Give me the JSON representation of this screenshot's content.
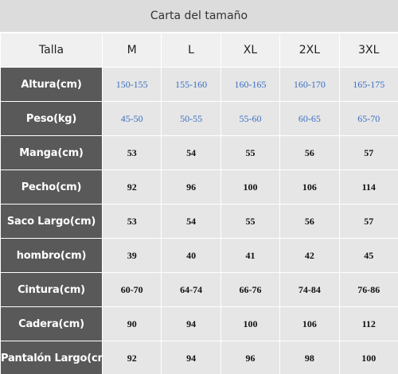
{
  "title": "Carta del tamaño",
  "header": {
    "label": "Talla",
    "sizes": [
      "M",
      "L",
      "XL",
      "2XL",
      "3XL"
    ]
  },
  "colors": {
    "label_bg": "#595959",
    "cell_bg": "#e6e6e6",
    "range_text": "#3a6fc4"
  },
  "rows": [
    {
      "label": "Altura(cm)",
      "values": [
        "150-155",
        "155-160",
        "160-165",
        "160-170",
        "165-175"
      ]
    },
    {
      "label": "Peso(kg)",
      "values": [
        "45-50",
        "50-55",
        "55-60",
        "60-65",
        "65-70"
      ]
    },
    {
      "label": "Manga(cm)",
      "values": [
        "53",
        "54",
        "55",
        "56",
        "57"
      ]
    },
    {
      "label": "Pecho(cm)",
      "values": [
        "92",
        "96",
        "100",
        "106",
        "114"
      ]
    },
    {
      "label": "Saco Largo(cm)",
      "values": [
        "53",
        "54",
        "55",
        "56",
        "57"
      ]
    },
    {
      "label": "hombro(cm)",
      "values": [
        "39",
        "40",
        "41",
        "42",
        "45"
      ]
    },
    {
      "label": "Cintura(cm)",
      "values": [
        "60-70",
        "64-74",
        "66-76",
        "74-84",
        "76-86"
      ]
    },
    {
      "label": "Cadera(cm)",
      "values": [
        "90",
        "94",
        "100",
        "106",
        "112"
      ]
    },
    {
      "label": "Pantalón Largo(cm)",
      "values": [
        "92",
        "94",
        "96",
        "98",
        "100"
      ]
    }
  ]
}
